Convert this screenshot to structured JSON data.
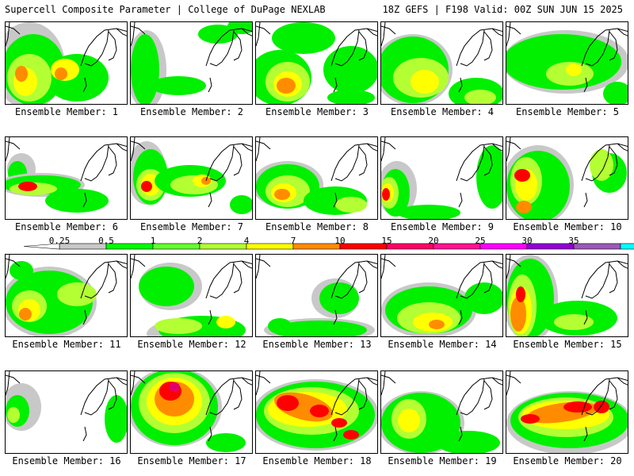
{
  "header": {
    "title_left": "Supercell Composite Parameter | College of DuPage NEXLAB",
    "title_right": "18Z GEFS | F198 Valid: 00Z SUN JUN 15 2025"
  },
  "colorbar": {
    "labels": [
      "0.25",
      "0.5",
      "1",
      "2",
      "4",
      "7",
      "10",
      "15",
      "20",
      "25",
      "30",
      "35"
    ],
    "colors": [
      "#c8c8c8",
      "#00ff00",
      "#66ff33",
      "#b3ff33",
      "#ffff00",
      "#ff8c00",
      "#ff0000",
      "#ff0066",
      "#ff1493",
      "#ff00ff",
      "#9400d3",
      "#9b59b6",
      "#00ffff"
    ]
  },
  "panels": [
    {
      "label": "Ensemble Member: 1"
    },
    {
      "label": "Ensemble Member: 2"
    },
    {
      "label": "Ensemble Member: 3"
    },
    {
      "label": "Ensemble Member: 4"
    },
    {
      "label": "Ensemble Member: 5"
    },
    {
      "label": "Ensemble Member: 6"
    },
    {
      "label": "Ensemble Member: 7"
    },
    {
      "label": "Ensemble Member: 8"
    },
    {
      "label": "Ensemble Member: 9"
    },
    {
      "label": "Ensemble Member: 10"
    },
    {
      "label": "Ensemble Member: 11"
    },
    {
      "label": "Ensemble Member: 12"
    },
    {
      "label": "Ensemble Member: 13"
    },
    {
      "label": "Ensemble Member: 14"
    },
    {
      "label": "Ensemble Member: 15"
    },
    {
      "label": "Ensemble Member: 16"
    },
    {
      "label": "Ensemble Member: 17"
    },
    {
      "label": "Ensemble Member: 18"
    },
    {
      "label": "Ensemble Member: 19"
    },
    {
      "label": "Ensemble Member: 20"
    }
  ]
}
